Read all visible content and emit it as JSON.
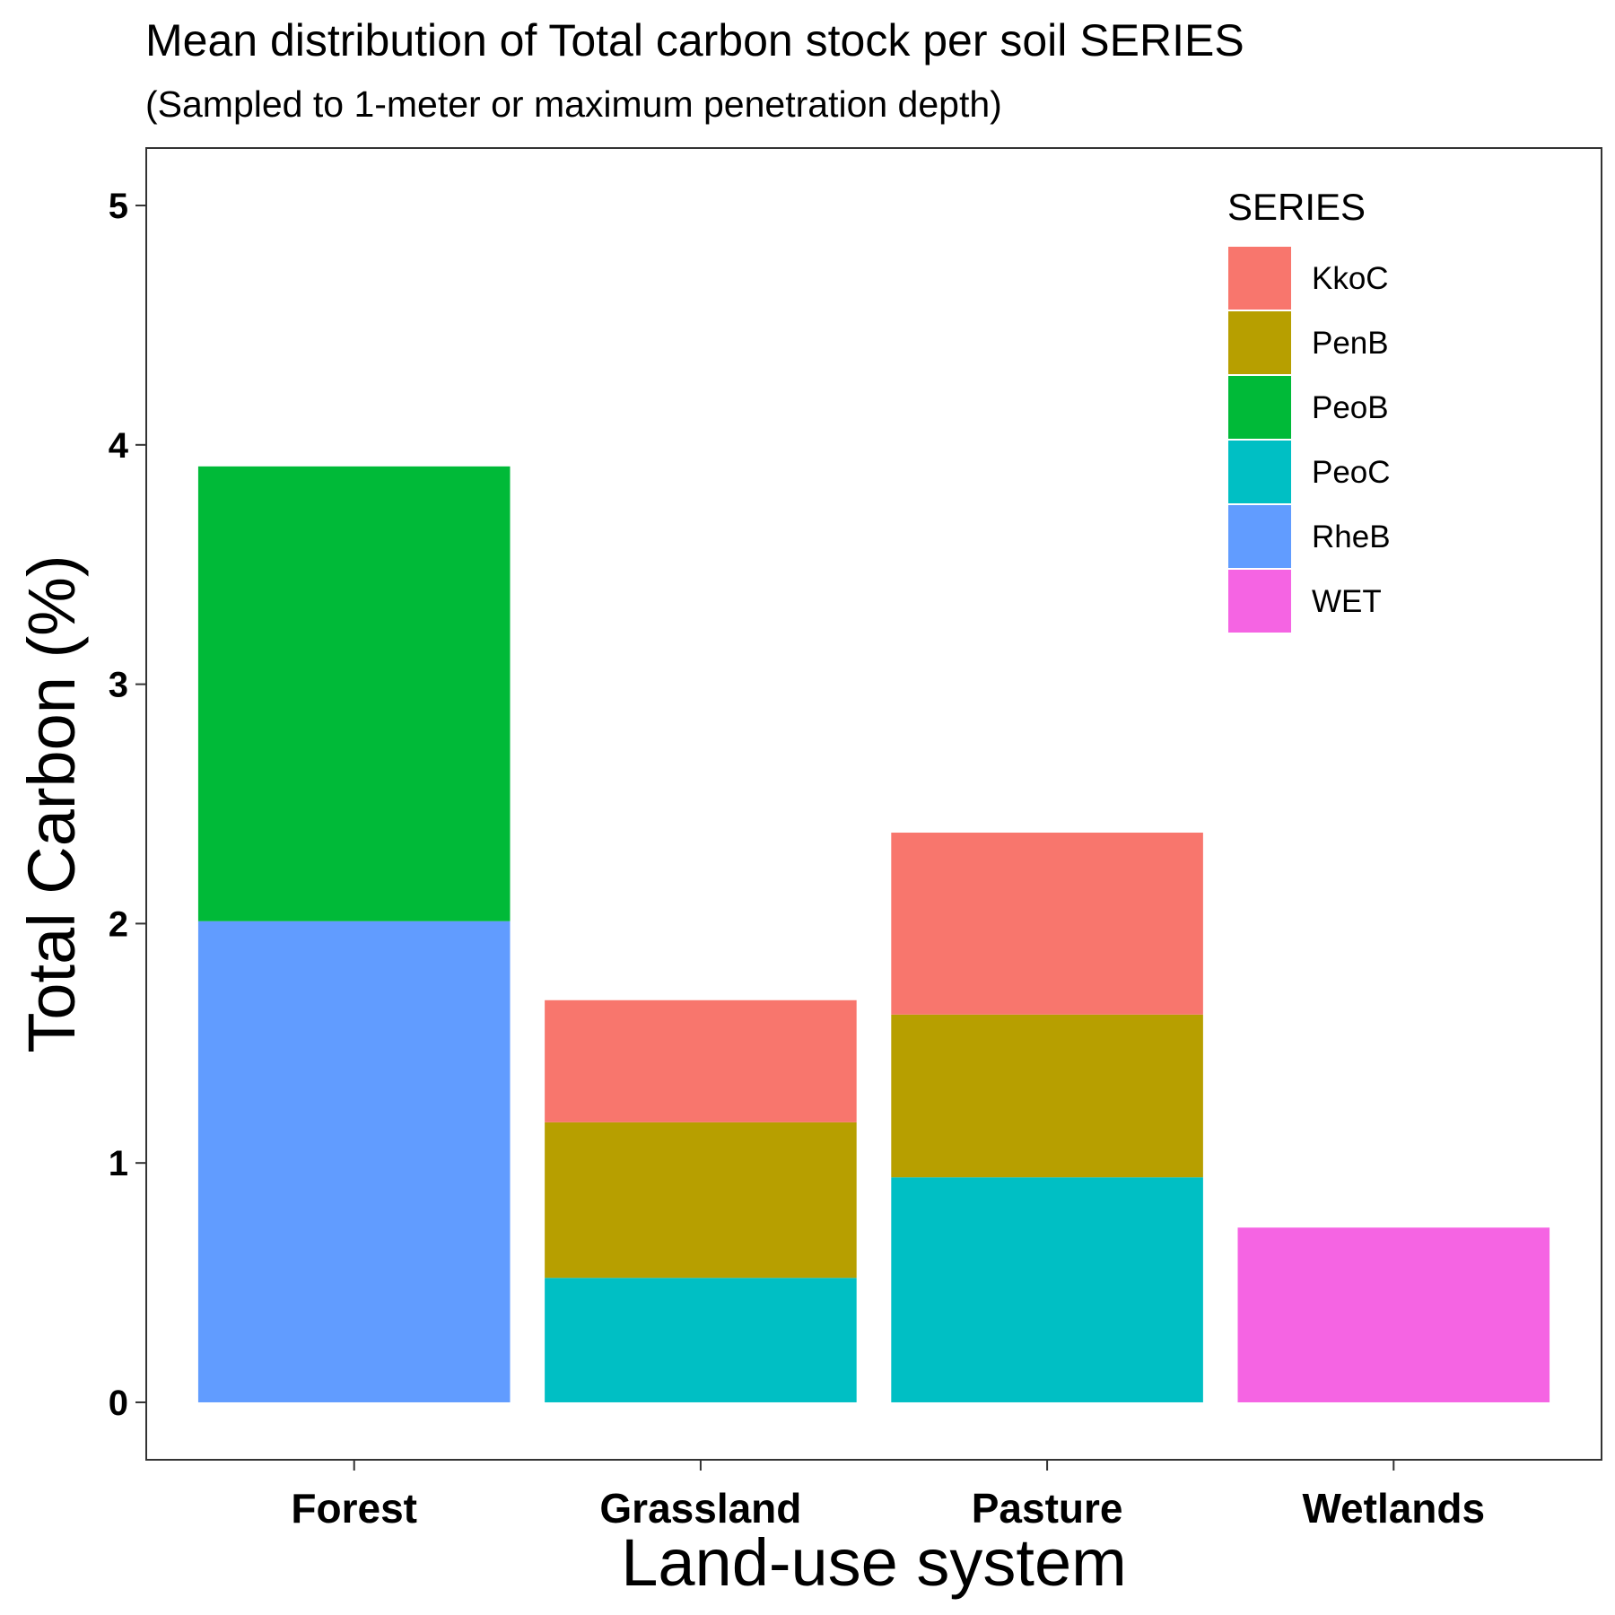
{
  "chart_data": {
    "type": "bar",
    "stacked": true,
    "title": "Mean distribution of Total carbon stock per soil SERIES",
    "subtitle": "(Sampled to 1-meter or maximum penetration depth)",
    "xlabel": "Land-use system",
    "ylabel": "Total Carbon (%)",
    "ylim": [
      -0.24,
      5.24
    ],
    "yticks": [
      0,
      1,
      2,
      3,
      4,
      5
    ],
    "grid": false,
    "categories": [
      "Forest",
      "Grassland",
      "Pasture",
      "Wetlands"
    ],
    "legend": {
      "title": "SERIES",
      "position": "top-right-inside"
    },
    "series": [
      {
        "name": "KkoC",
        "color": "#F8766D",
        "values": [
          0,
          0.51,
          0.76,
          0
        ]
      },
      {
        "name": "PenB",
        "color": "#B79F00",
        "values": [
          0,
          0.65,
          0.68,
          0
        ]
      },
      {
        "name": "PeoB",
        "color": "#00BA38",
        "values": [
          1.9,
          0,
          0,
          0
        ]
      },
      {
        "name": "PeoC",
        "color": "#00BFC4",
        "values": [
          0,
          0.52,
          0.94,
          0
        ]
      },
      {
        "name": "RheB",
        "color": "#619CFF",
        "values": [
          2.01,
          0,
          0,
          0
        ]
      },
      {
        "name": "WET",
        "color": "#F564E3",
        "values": [
          0,
          0,
          0,
          0.73
        ]
      }
    ]
  }
}
